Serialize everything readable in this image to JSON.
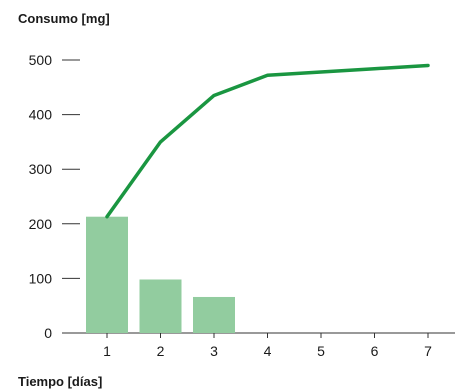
{
  "chart_data": {
    "type": "bar",
    "ylabel": "Consumo [mg]",
    "xlabel": "Tiempo [días]",
    "ylim": [
      0,
      500
    ],
    "yticks": [
      0,
      100,
      200,
      300,
      400,
      500
    ],
    "categories": [
      "1",
      "2",
      "3",
      "4",
      "5",
      "6",
      "7"
    ],
    "series": [
      {
        "type": "bar",
        "values": [
          213,
          98,
          66,
          null,
          null,
          null,
          null
        ],
        "color": "#92cc9f"
      },
      {
        "type": "line",
        "values": [
          213,
          350,
          435,
          472,
          478,
          484,
          490
        ],
        "color": "#1a9641"
      }
    ],
    "grid": false,
    "legend": "none"
  }
}
